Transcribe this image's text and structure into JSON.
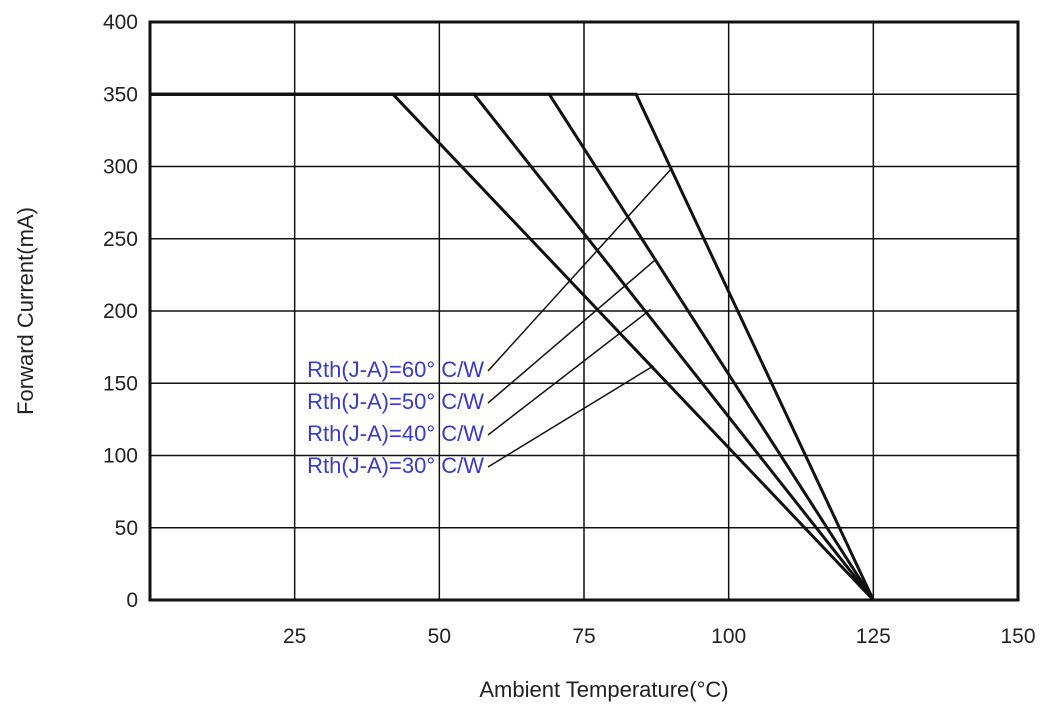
{
  "chart_data": {
    "type": "line",
    "title": "",
    "xlabel": "Ambient Temperature(°C)",
    "ylabel": "Forward Current(mA)",
    "xlim": [
      0,
      150
    ],
    "ylim": [
      0,
      400
    ],
    "xticks": [
      25,
      50,
      75,
      100,
      125,
      150
    ],
    "yticks": [
      0,
      50,
      100,
      150,
      200,
      250,
      300,
      350,
      400
    ],
    "grid": true,
    "series": [
      {
        "name": "Rth(J-A)=60° C/W",
        "x": [
          0,
          42,
          125
        ],
        "y": [
          350,
          350,
          0
        ]
      },
      {
        "name": "Rth(J-A)=50° C/W",
        "x": [
          0,
          56,
          125
        ],
        "y": [
          350,
          350,
          0
        ]
      },
      {
        "name": "Rth(J-A)=40° C/W",
        "x": [
          0,
          69,
          125
        ],
        "y": [
          350,
          350,
          0
        ]
      },
      {
        "name": "Rth(J-A)=30° C/W",
        "x": [
          0,
          84,
          125
        ],
        "y": [
          350,
          350,
          0
        ]
      }
    ],
    "annotations": [
      {
        "text": "Rth(J-A)=60° C/W",
        "target": [
          90,
          298
        ]
      },
      {
        "text": "Rth(J-A)=50° C/W",
        "target": [
          87.5,
          236
        ]
      },
      {
        "text": "Rth(J-A)=40° C/W",
        "target": [
          86.5,
          201
        ]
      },
      {
        "text": "Rth(J-A)=30° C/W",
        "target": [
          87,
          162
        ]
      }
    ],
    "colors": {
      "lines": "#111111",
      "grid": "#111111",
      "label_text": "#3a3acc"
    }
  }
}
